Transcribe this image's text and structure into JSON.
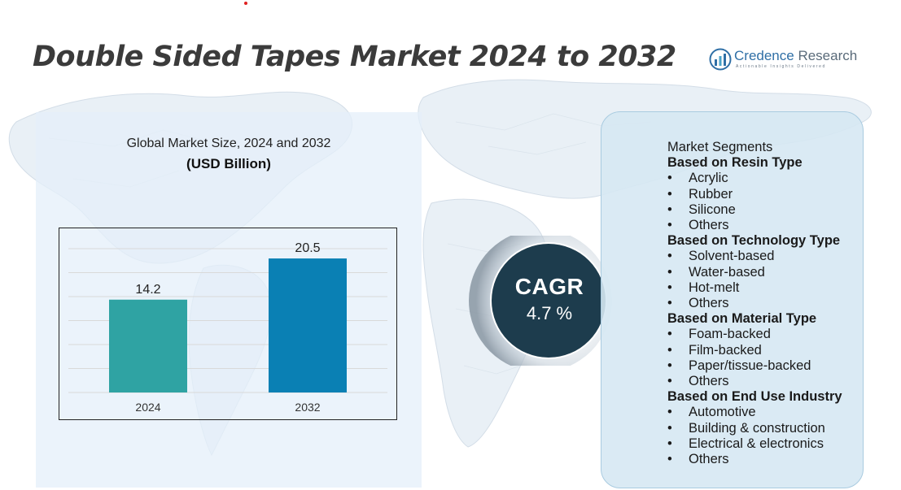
{
  "title": "Double Sided Tapes Market 2024 to 2032",
  "logo": {
    "name_part1": "Credence",
    "name_part2": " Research",
    "tagline": "Actionable Insights Delivered"
  },
  "chart_header": {
    "title": "Global Market Size,  2024 and 2032",
    "subtitle": "(USD Billion)"
  },
  "chart_data": {
    "type": "bar",
    "title": "Global Market Size,  2024 and 2032",
    "subtitle": "(USD Billion)",
    "categories": [
      "2024",
      "2032"
    ],
    "values": [
      14.2,
      20.5
    ],
    "data_labels": [
      "14.2",
      "20.5"
    ],
    "colors": [
      "#2fa3a3",
      "#0a80b4"
    ],
    "ylim": [
      0,
      22
    ],
    "grid": true,
    "legend": "none"
  },
  "cagr": {
    "label": "CAGR",
    "value": "4.7 %"
  },
  "segments": {
    "heading": "Market Segments",
    "bullet": "•",
    "groups": [
      {
        "title": "Based on Resin Type",
        "items": [
          "Acrylic",
          "Rubber",
          "Silicone",
          "Others"
        ]
      },
      {
        "title": "Based on Technology Type",
        "items": [
          "Solvent-based",
          "Water-based",
          "Hot-melt",
          "Others"
        ]
      },
      {
        "title": "Based on Material Type",
        "items": [
          "Foam-backed",
          "Film-backed",
          "Paper/tissue-backed",
          "Others"
        ]
      },
      {
        "title": "Based on End Use Industry",
        "items": [
          "Automotive",
          "Building & construction",
          "Electrical & electronics",
          "Others"
        ]
      }
    ]
  },
  "colors": {
    "title_text": "#3b3b3b",
    "cagr_circle": "#1d3c4d",
    "left_panel": "#e4eff9",
    "right_panel": "#d6e8f3",
    "logo_blue": "#2f6fa6"
  }
}
